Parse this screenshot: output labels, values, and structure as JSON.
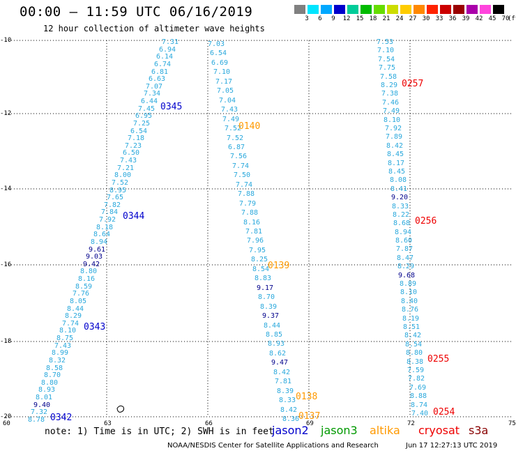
{
  "title": "00:00 – 11:59 UTC 06/16/2019",
  "subtitle": "12 hour collection of altimeter wave heights",
  "legend": {
    "unit": "(ft)",
    "labels": [
      "3",
      "6",
      "9",
      "12",
      "15",
      "18",
      "21",
      "24",
      "27",
      "30",
      "33",
      "36",
      "39",
      "42",
      "45",
      "70"
    ],
    "colors": [
      "#808080",
      "#00e5ff",
      "#00a8ff",
      "#0000cc",
      "#00cc99",
      "#00bb00",
      "#66dd00",
      "#ccdd00",
      "#ffcc00",
      "#ff8800",
      "#ff2200",
      "#cc0000",
      "#990000",
      "#aa00aa",
      "#ff44dd",
      "#000000"
    ]
  },
  "axes": {
    "x_ticks": [
      "60",
      "63",
      "66",
      "69",
      "72",
      "75"
    ],
    "y_ticks": [
      "-10",
      "-12",
      "-14",
      "-16",
      "-18",
      "-20"
    ]
  },
  "tracks": [
    {
      "name": "track1",
      "values": [
        "7.31",
        "6.94",
        "6.14",
        "6.74",
        "6.81",
        "6.63",
        "7.07",
        "7.34",
        "6.44",
        "7.45",
        "6.95",
        "7.25",
        "6.54",
        "7.18",
        "7.23",
        "6.50",
        "7.43",
        "7.21",
        "8.00",
        "7.52",
        "8.95",
        "7.65",
        "7.82",
        "7.84",
        "7.92",
        "8.18",
        "8.64",
        "8.94",
        "9.61",
        "9.03",
        "9.42",
        "8.80",
        "8.16",
        "8.59",
        "7.76",
        "8.05",
        "8.44",
        "8.29",
        "7.74",
        "8.10",
        "8.75",
        "7.43",
        "8.99",
        "8.32",
        "8.58",
        "8.70",
        "8.80",
        "8.93",
        "8.01",
        "9.40",
        "7.32",
        "8.78"
      ]
    },
    {
      "name": "track2",
      "values": [
        "7.03",
        "6.54",
        "6.69",
        "7.10",
        "7.17",
        "7.05",
        "7.04",
        "7.43",
        "7.49",
        "7.52",
        "7.52",
        "6.87",
        "7.56",
        "7.74",
        "7.50",
        "7.74",
        "7.88",
        "7.79",
        "7.88",
        "8.16",
        "7.81",
        "7.96",
        "7.95",
        "8.25",
        "8.54",
        "8.83",
        "9.17",
        "8.70",
        "8.39",
        "9.37",
        "8.44",
        "8.85",
        "8.93",
        "8.62",
        "9.47",
        "8.42",
        "7.81",
        "8.39",
        "8.33",
        "8.42",
        "8.36"
      ]
    },
    {
      "name": "track3",
      "values": [
        "7.53",
        "7.10",
        "7.54",
        "7.75",
        "7.58",
        "8.29",
        "7.38",
        "7.46",
        "7.49",
        "8.10",
        "7.92",
        "7.89",
        "8.42",
        "8.45",
        "8.17",
        "8.45",
        "8.08",
        "8.41",
        "9.20",
        "8.33",
        "8.22",
        "8.68",
        "8.94",
        "8.60",
        "7.87",
        "8.47",
        "8.29",
        "9.68",
        "8.89",
        "8.10",
        "8.40",
        "8.76",
        "8.19",
        "8.51",
        "8.42",
        "8.54",
        "8.80",
        "8.38",
        "7.59",
        "7.82",
        "7.69",
        "8.88",
        "8.74",
        "7.40"
      ]
    }
  ],
  "time_labels": [
    {
      "text": "0345",
      "sat": "jason2"
    },
    {
      "text": "0344",
      "sat": "jason2"
    },
    {
      "text": "0343",
      "sat": "jason2"
    },
    {
      "text": "0342",
      "sat": "jason2"
    },
    {
      "text": "0140",
      "sat": "altika"
    },
    {
      "text": "0139",
      "sat": "altika"
    },
    {
      "text": "0138",
      "sat": "altika"
    },
    {
      "text": "0137",
      "sat": "altika"
    },
    {
      "text": "0257",
      "sat": "cryosat"
    },
    {
      "text": "0256",
      "sat": "cryosat"
    },
    {
      "text": "0255",
      "sat": "cryosat"
    },
    {
      "text": "0254",
      "sat": "cryosat"
    }
  ],
  "note": "note: 1) Time is in UTC; 2) SWH is in feet",
  "satellites": [
    {
      "name": "jason2",
      "color": "#0000cc"
    },
    {
      "name": "jason3",
      "color": "#009900"
    },
    {
      "name": "altika",
      "color": "#ff9900"
    },
    {
      "name": "cryosat",
      "color": "#ee0000"
    },
    {
      "name": "s3a",
      "color": "#880000"
    }
  ],
  "footer": {
    "credit": "NOAA/NESDIS Center for Satellite Applications and Research",
    "timestamp": "Jun 17 12:27:13 UTC 2019"
  },
  "value_colors": {
    "low": "#29a8dc",
    "high": "#00008b"
  }
}
